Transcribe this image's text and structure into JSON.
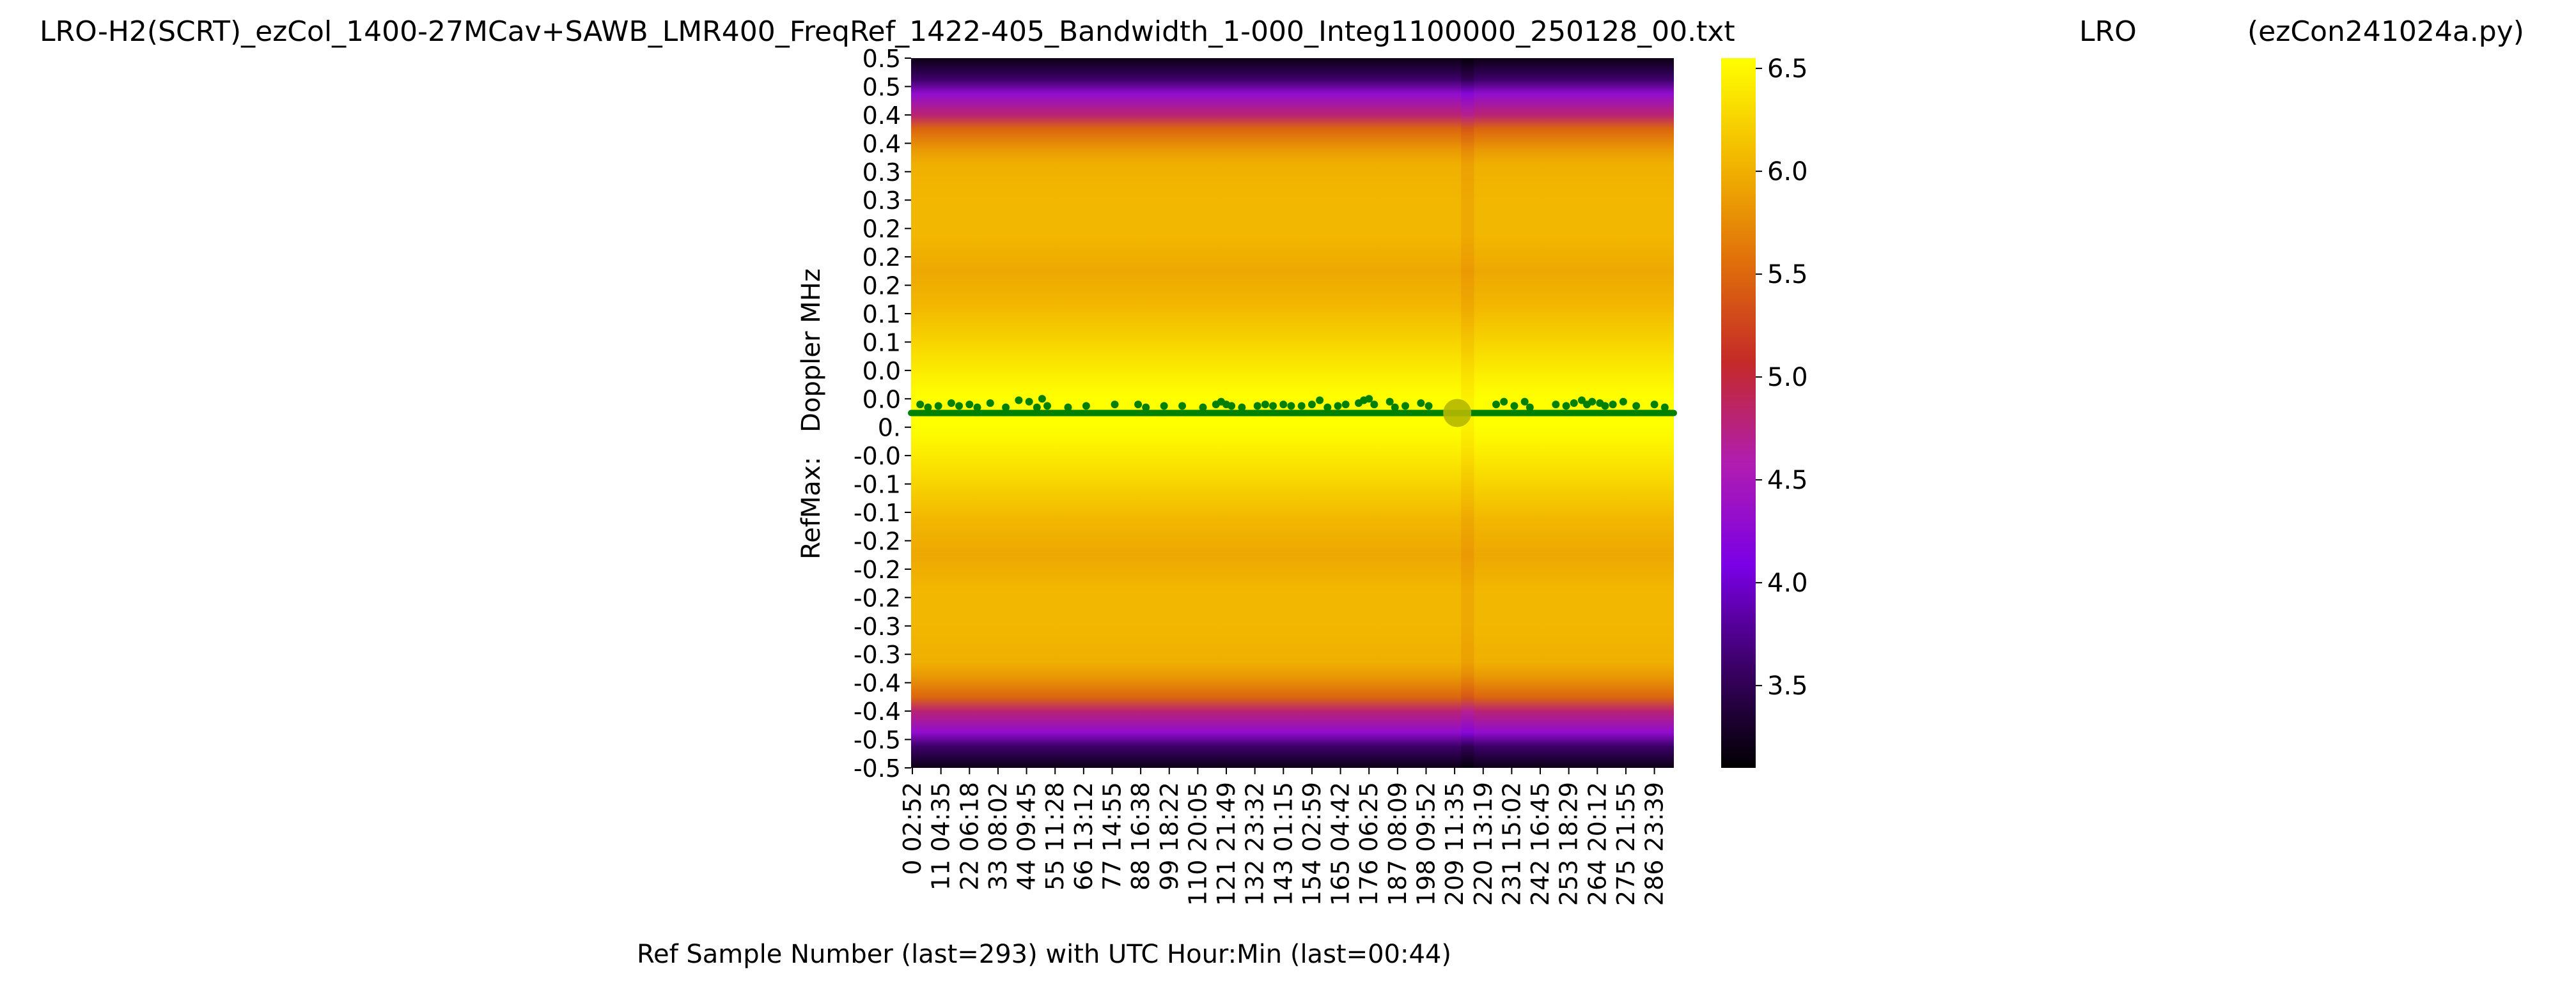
{
  "title": {
    "filename": "LRO-H2(SCRT)_ezCol_1400-27MCav+SAWB_LMR400_FreqRef_1422-405_Bandwidth_1-000_Integ1100000_250128_00.txt",
    "station": "LRO",
    "program": "(ezCon241024a.py)"
  },
  "chart_data": {
    "type": "heatmap",
    "xlabel": "Ref Sample Number (last=293) with UTC Hour:Min (last=00:44)",
    "ylabel": "RefMax:   Doppler MHz",
    "x_count": 294,
    "x_tick_labels": [
      {
        "sample": "0",
        "time": "02:52"
      },
      {
        "sample": "11",
        "time": "04:35"
      },
      {
        "sample": "22",
        "time": "06:18"
      },
      {
        "sample": "33",
        "time": "08:02"
      },
      {
        "sample": "44",
        "time": "09:45"
      },
      {
        "sample": "55",
        "time": "11:28"
      },
      {
        "sample": "66",
        "time": "13:12"
      },
      {
        "sample": "77",
        "time": "14:55"
      },
      {
        "sample": "88",
        "time": "16:38"
      },
      {
        "sample": "99",
        "time": "18:22"
      },
      {
        "sample": "110",
        "time": "20:05"
      },
      {
        "sample": "121",
        "time": "21:49"
      },
      {
        "sample": "132",
        "time": "23:32"
      },
      {
        "sample": "143",
        "time": "01:15"
      },
      {
        "sample": "154",
        "time": "02:59"
      },
      {
        "sample": "165",
        "time": "04:42"
      },
      {
        "sample": "176",
        "time": "06:25"
      },
      {
        "sample": "187",
        "time": "08:09"
      },
      {
        "sample": "198",
        "time": "09:52"
      },
      {
        "sample": "209",
        "time": "11:35"
      },
      {
        "sample": "220",
        "time": "13:19"
      },
      {
        "sample": "231",
        "time": "15:02"
      },
      {
        "sample": "242",
        "time": "16:45"
      },
      {
        "sample": "253",
        "time": "18:29"
      },
      {
        "sample": "264",
        "time": "20:12"
      },
      {
        "sample": "275",
        "time": "21:55"
      },
      {
        "sample": "286",
        "time": "23:39"
      }
    ],
    "y_tick_labels": [
      "0.5",
      "0.5",
      "0.4",
      "0.4",
      "0.3",
      "0.3",
      "0.2",
      "0.2",
      "0.2",
      "0.1",
      "0.1",
      "0.0",
      "0.0",
      "0.",
      "-0.0",
      "-0.1",
      "-0.1",
      "-0.2",
      "-0.2",
      "-0.2",
      "-0.3",
      "-0.3",
      "-0.4",
      "-0.4",
      "-0.5",
      "-0.5"
    ],
    "colorbar": {
      "min": 3.1,
      "max": 6.55,
      "ticks": [
        "3.5",
        "4.0",
        "4.5",
        "5.0",
        "5.5",
        "6.0",
        "6.5"
      ],
      "colormap": "gnuplot",
      "stops": [
        "#000000",
        "#3b0066",
        "#7a00e6",
        "#b01db0",
        "#c42a28",
        "#e0700a",
        "#f2b800",
        "#ffff00"
      ]
    },
    "profile": {
      "doppler": [
        0.5,
        0.47,
        0.45,
        0.42,
        0.4,
        0.37,
        0.35,
        0.3,
        0.25,
        0.2,
        0.15,
        0.1,
        0.05,
        0.02,
        0.0,
        -0.02,
        -0.05,
        -0.1,
        -0.15,
        -0.2,
        -0.25,
        -0.3,
        -0.35,
        -0.37,
        -0.4,
        -0.42,
        -0.45,
        -0.47,
        -0.5
      ],
      "value": [
        3.2,
        3.6,
        4.3,
        4.8,
        5.5,
        5.85,
        6.0,
        6.05,
        6.05,
        5.95,
        6.05,
        6.25,
        6.45,
        6.55,
        6.55,
        6.55,
        6.45,
        6.25,
        6.05,
        5.95,
        6.05,
        6.05,
        6.0,
        5.85,
        5.5,
        4.8,
        4.3,
        3.6,
        3.2
      ]
    },
    "sample_dip": {
      "sample": 212,
      "delta": -0.18
    },
    "refmax_series": {
      "name": "RefMax",
      "color": "#008000",
      "baseline_doppler": 0.0,
      "offsets": [
        {
          "sample": 3,
          "doppler": 0.012
        },
        {
          "sample": 6,
          "doppler": 0.008
        },
        {
          "sample": 10,
          "doppler": 0.01
        },
        {
          "sample": 15,
          "doppler": 0.014
        },
        {
          "sample": 18,
          "doppler": 0.01
        },
        {
          "sample": 22,
          "doppler": 0.012
        },
        {
          "sample": 25,
          "doppler": 0.008
        },
        {
          "sample": 30,
          "doppler": 0.014
        },
        {
          "sample": 36,
          "doppler": 0.008
        },
        {
          "sample": 41,
          "doppler": 0.018
        },
        {
          "sample": 45,
          "doppler": 0.016
        },
        {
          "sample": 48,
          "doppler": 0.008
        },
        {
          "sample": 50,
          "doppler": 0.02
        },
        {
          "sample": 52,
          "doppler": 0.01
        },
        {
          "sample": 60,
          "doppler": 0.008
        },
        {
          "sample": 67,
          "doppler": 0.01
        },
        {
          "sample": 78,
          "doppler": 0.012
        },
        {
          "sample": 87,
          "doppler": 0.012
        },
        {
          "sample": 90,
          "doppler": 0.008
        },
        {
          "sample": 97,
          "doppler": 0.01
        },
        {
          "sample": 104,
          "doppler": 0.01
        },
        {
          "sample": 112,
          "doppler": 0.008
        },
        {
          "sample": 117,
          "doppler": 0.012
        },
        {
          "sample": 119,
          "doppler": 0.016
        },
        {
          "sample": 121,
          "doppler": 0.012
        },
        {
          "sample": 123,
          "doppler": 0.01
        },
        {
          "sample": 127,
          "doppler": 0.008
        },
        {
          "sample": 133,
          "doppler": 0.01
        },
        {
          "sample": 136,
          "doppler": 0.012
        },
        {
          "sample": 139,
          "doppler": 0.01
        },
        {
          "sample": 143,
          "doppler": 0.012
        },
        {
          "sample": 146,
          "doppler": 0.01
        },
        {
          "sample": 150,
          "doppler": 0.01
        },
        {
          "sample": 154,
          "doppler": 0.012
        },
        {
          "sample": 157,
          "doppler": 0.018
        },
        {
          "sample": 160,
          "doppler": 0.008
        },
        {
          "sample": 164,
          "doppler": 0.01
        },
        {
          "sample": 167,
          "doppler": 0.012
        },
        {
          "sample": 172,
          "doppler": 0.014
        },
        {
          "sample": 174,
          "doppler": 0.018
        },
        {
          "sample": 176,
          "doppler": 0.02
        },
        {
          "sample": 178,
          "doppler": 0.012
        },
        {
          "sample": 184,
          "doppler": 0.016
        },
        {
          "sample": 186,
          "doppler": 0.008
        },
        {
          "sample": 190,
          "doppler": 0.01
        },
        {
          "sample": 196,
          "doppler": 0.014
        },
        {
          "sample": 199,
          "doppler": 0.01
        },
        {
          "sample": 225,
          "doppler": 0.012
        },
        {
          "sample": 228,
          "doppler": 0.016
        },
        {
          "sample": 232,
          "doppler": 0.01
        },
        {
          "sample": 236,
          "doppler": 0.016
        },
        {
          "sample": 238,
          "doppler": 0.008
        },
        {
          "sample": 248,
          "doppler": 0.012
        },
        {
          "sample": 252,
          "doppler": 0.01
        },
        {
          "sample": 255,
          "doppler": 0.014
        },
        {
          "sample": 258,
          "doppler": 0.018
        },
        {
          "sample": 260,
          "doppler": 0.012
        },
        {
          "sample": 262,
          "doppler": 0.016
        },
        {
          "sample": 265,
          "doppler": 0.014
        },
        {
          "sample": 267,
          "doppler": 0.01
        },
        {
          "sample": 270,
          "doppler": 0.012
        },
        {
          "sample": 274,
          "doppler": 0.016
        },
        {
          "sample": 279,
          "doppler": 0.01
        },
        {
          "sample": 286,
          "doppler": 0.012
        },
        {
          "sample": 290,
          "doppler": 0.008
        }
      ]
    },
    "marker": {
      "sample": 210,
      "doppler": 0.0,
      "color": "#b5b800"
    }
  }
}
